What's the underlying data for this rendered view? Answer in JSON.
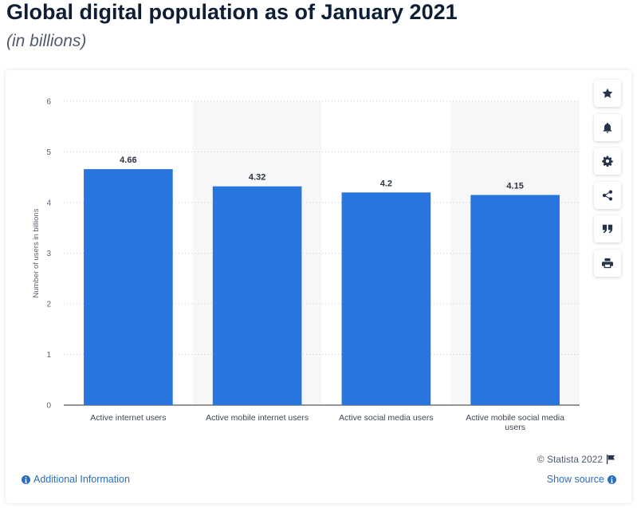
{
  "page": {
    "title": "Global digital population as of January 2021",
    "subtitle": "(in billions)"
  },
  "toolbar": {
    "buttons": [
      "star-icon",
      "bell-icon",
      "gear-icon",
      "share-icon",
      "quote-icon",
      "print-icon"
    ]
  },
  "footer": {
    "copyright": "© Statista 2022",
    "additional_info": "Additional Information",
    "show_source": "Show source"
  },
  "colors": {
    "bar": "#2876dd",
    "stripe": "#f7f7f7",
    "link": "#2a6fbf"
  },
  "chart_data": {
    "type": "bar",
    "categories": [
      "Active internet users",
      "Active mobile internet users",
      "Active social media users",
      "Active mobile social media users"
    ],
    "values": [
      4.66,
      4.32,
      4.2,
      4.15
    ],
    "data_labels": [
      "4.66",
      "4.32",
      "4.2",
      "4.15"
    ],
    "title": "",
    "xlabel": "",
    "ylabel": "Number of users in billions",
    "ylim": [
      0,
      6
    ],
    "yticks": [
      0,
      1,
      2,
      3,
      4,
      5,
      6
    ],
    "grid": true,
    "legend": "none"
  }
}
